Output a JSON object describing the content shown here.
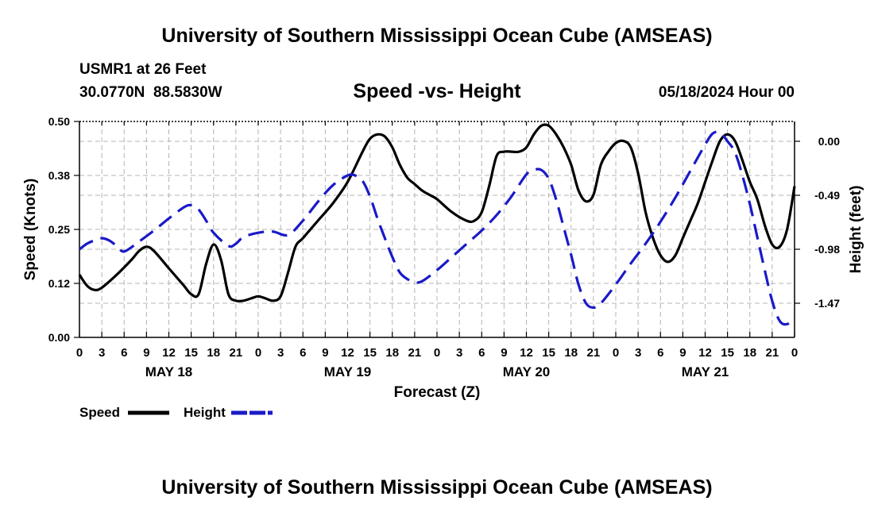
{
  "header": {
    "title": "University of Southern Mississippi Ocean Cube (AMSEAS)",
    "station": "USMR1 at 26 Feet",
    "coords": "30.0770N  88.5830W",
    "date": "05/18/2024 Hour 00"
  },
  "footer": {
    "title": "University of Southern Mississippi Ocean Cube (AMSEAS)"
  },
  "legend": {
    "speed_label": "Speed",
    "height_label": "Height"
  },
  "colors": {
    "speed": "#000000",
    "height": "#1a1ac8",
    "grid": "#b4b4b4"
  },
  "chart_data": {
    "type": "line",
    "title": "Speed -vs- Height",
    "xlabel": "Forecast (Z)",
    "ylabel": "Speed (Knots)",
    "ylabel_right": "Height (feet)",
    "xlim": [
      0,
      96
    ],
    "ylim": [
      0,
      0.5
    ],
    "ylim_right": [
      -1.78,
      0.18
    ],
    "x_tick_labels": [
      "0",
      "3",
      "6",
      "9",
      "12",
      "15",
      "18",
      "21",
      "0",
      "3",
      "6",
      "9",
      "12",
      "15",
      "18",
      "21",
      "0",
      "3",
      "6",
      "9",
      "12",
      "15",
      "18",
      "21",
      "0",
      "3",
      "6",
      "9",
      "12",
      "15",
      "18",
      "21",
      "0"
    ],
    "day_labels": [
      {
        "x": 12,
        "label": "MAY 18"
      },
      {
        "x": 36,
        "label": "MAY 19"
      },
      {
        "x": 60,
        "label": "MAY 20"
      },
      {
        "x": 84,
        "label": "MAY 21"
      }
    ],
    "y_ticks": [
      {
        "v": 0.0,
        "label": "0.00"
      },
      {
        "v": 0.125,
        "label": "0.12"
      },
      {
        "v": 0.25,
        "label": "0.25"
      },
      {
        "v": 0.375,
        "label": "0.38"
      },
      {
        "v": 0.5,
        "label": "0.50"
      }
    ],
    "y_ticks_right": [
      {
        "v": 0.0,
        "label": "0.00"
      },
      {
        "v": -0.49,
        "label": "-0.49"
      },
      {
        "v": -0.98,
        "label": "-0.98"
      },
      {
        "v": -1.47,
        "label": "-1.47"
      }
    ],
    "series": [
      {
        "name": "Speed",
        "axis": "left",
        "style": "solid",
        "x": [
          0,
          1,
          2,
          3,
          5,
          7,
          8,
          9,
          10,
          12,
          14,
          15,
          16,
          17,
          18,
          19,
          20,
          21,
          22,
          23,
          24,
          25,
          26,
          27,
          28,
          29,
          30,
          32,
          34,
          36,
          38,
          39,
          40,
          41,
          42,
          43,
          44,
          45,
          46,
          47,
          48,
          50,
          52,
          53,
          54,
          55,
          56,
          57,
          58,
          59,
          60,
          61,
          62,
          63,
          64,
          65,
          66,
          67,
          68,
          69,
          70,
          71,
          72,
          73,
          74,
          75,
          76,
          77,
          78,
          79,
          80,
          81,
          82,
          83,
          84,
          85,
          86,
          87,
          88,
          89,
          90,
          91,
          92,
          93,
          94,
          95,
          96
        ],
        "values": [
          0.145,
          0.12,
          0.11,
          0.115,
          0.145,
          0.18,
          0.2,
          0.21,
          0.2,
          0.16,
          0.12,
          0.1,
          0.1,
          0.17,
          0.215,
          0.18,
          0.1,
          0.085,
          0.085,
          0.09,
          0.095,
          0.09,
          0.085,
          0.095,
          0.15,
          0.21,
          0.23,
          0.27,
          0.31,
          0.36,
          0.43,
          0.46,
          0.47,
          0.465,
          0.44,
          0.4,
          0.37,
          0.355,
          0.34,
          0.33,
          0.32,
          0.29,
          0.27,
          0.27,
          0.29,
          0.35,
          0.42,
          0.43,
          0.43,
          0.43,
          0.44,
          0.47,
          0.49,
          0.49,
          0.47,
          0.44,
          0.4,
          0.34,
          0.315,
          0.33,
          0.4,
          0.43,
          0.45,
          0.455,
          0.44,
          0.38,
          0.29,
          0.23,
          0.19,
          0.175,
          0.19,
          0.23,
          0.27,
          0.31,
          0.36,
          0.41,
          0.455,
          0.47,
          0.455,
          0.41,
          0.36,
          0.32,
          0.26,
          0.215,
          0.21,
          0.25,
          0.35
        ]
      },
      {
        "name": "Height",
        "axis": "right",
        "style": "dashed",
        "x": [
          0,
          1,
          2,
          3,
          4,
          5,
          6,
          8,
          10,
          12,
          14,
          15,
          16,
          17,
          18,
          20,
          21,
          22,
          24,
          26,
          28,
          30,
          32,
          34,
          36,
          37,
          38,
          39,
          40,
          41,
          42,
          43,
          44,
          45,
          46,
          48,
          50,
          52,
          54,
          56,
          58,
          60,
          61,
          62,
          63,
          64,
          65,
          66,
          67,
          68,
          69,
          70,
          72,
          74,
          76,
          78,
          80,
          82,
          84,
          85,
          86,
          87,
          88,
          89,
          90,
          91,
          92,
          93,
          94,
          95,
          96
        ],
        "values": [
          -0.98,
          -0.93,
          -0.9,
          -0.88,
          -0.9,
          -0.95,
          -1.0,
          -0.91,
          -0.81,
          -0.7,
          -0.6,
          -0.58,
          -0.62,
          -0.72,
          -0.83,
          -0.95,
          -0.93,
          -0.87,
          -0.83,
          -0.82,
          -0.85,
          -0.72,
          -0.55,
          -0.4,
          -0.31,
          -0.31,
          -0.36,
          -0.5,
          -0.7,
          -0.88,
          -1.05,
          -1.19,
          -1.25,
          -1.28,
          -1.27,
          -1.17,
          -1.05,
          -0.93,
          -0.81,
          -0.67,
          -0.5,
          -0.3,
          -0.26,
          -0.26,
          -0.34,
          -0.53,
          -0.78,
          -1.03,
          -1.3,
          -1.47,
          -1.51,
          -1.47,
          -1.3,
          -1.11,
          -0.93,
          -0.73,
          -0.51,
          -0.27,
          -0.03,
          0.07,
          0.08,
          0.0,
          -0.1,
          -0.31,
          -0.57,
          -0.87,
          -1.17,
          -1.45,
          -1.63,
          -1.66,
          -1.6
        ]
      }
    ]
  }
}
